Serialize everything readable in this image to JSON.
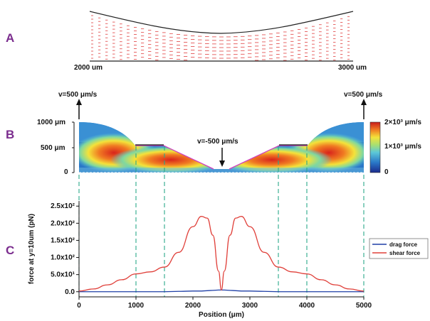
{
  "panels": {
    "a": "A",
    "b": "B",
    "c": "C"
  },
  "panel_a": {
    "left_label": "2000 um",
    "right_label": "3000 um"
  },
  "panel_b": {
    "v_left": "v=500 μm/s",
    "v_right": "v=500 μm/s",
    "v_center": "v=-500 μm/s",
    "y_ticks": [
      "1000 μm",
      "500 μm",
      "0"
    ],
    "colorbar_ticks": [
      "2×10³ μm/s",
      "1×10³ μm/s",
      "0"
    ]
  },
  "chart_data": {
    "type": "line",
    "xlabel": "Position (μm)",
    "ylabel": "force at y=10um (pN)",
    "xlim": [
      0,
      5000
    ],
    "ylim": [
      -15,
      265
    ],
    "x_ticks": [
      "0",
      "1000",
      "2000",
      "3000",
      "4000",
      "5000"
    ],
    "y_ticks": [
      "0.0",
      "5.0x10¹",
      "1.0x10²",
      "1.5x10²",
      "2.0x10²",
      "2.5x10²"
    ],
    "legend_position": "right",
    "x": [
      0,
      250,
      500,
      750,
      1000,
      1250,
      1500,
      1750,
      2000,
      2150,
      2250,
      2350,
      2450,
      2500,
      2550,
      2650,
      2750,
      2850,
      3000,
      3250,
      3500,
      3750,
      4000,
      4250,
      4500,
      4750,
      5000
    ],
    "series": [
      {
        "name": "drag force",
        "color": "#1f3fa6",
        "values": [
          0,
          0,
          0,
          0,
          0,
          0,
          0,
          1,
          2,
          2,
          3,
          4,
          5,
          5,
          5,
          4,
          3,
          2,
          2,
          1,
          0,
          0,
          0,
          0,
          0,
          0,
          0
        ]
      },
      {
        "name": "shear force",
        "color": "#e0403a",
        "values": [
          2,
          8,
          20,
          35,
          52,
          58,
          72,
          115,
          190,
          220,
          215,
          165,
          60,
          5,
          60,
          165,
          215,
          220,
          190,
          115,
          72,
          58,
          52,
          35,
          20,
          8,
          2
        ]
      }
    ]
  }
}
